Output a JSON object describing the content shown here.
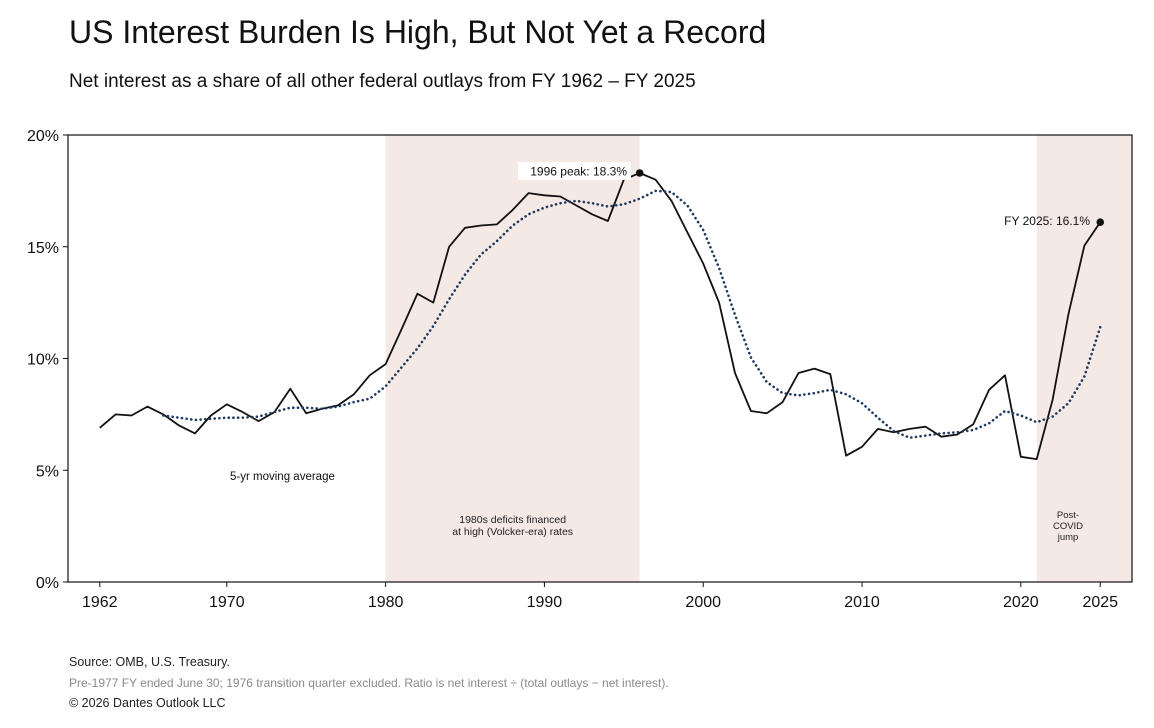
{
  "header": {
    "title": "US Interest Burden Is High, But Not Yet a Record",
    "subtitle": "Net interest as a share of all other federal outlays from FY 1962 – FY 2025"
  },
  "footer": {
    "source": "Source: OMB, U.S. Treasury.",
    "note": "Pre-1977 FY ended June 30; 1976 transition quarter excluded. Ratio is net interest ÷ (total outlays − net interest).",
    "copyright": "© 2026 Dantes Outlook LLC"
  },
  "chart_data": {
    "type": "line",
    "xlim": [
      1960,
      2027
    ],
    "ylim": [
      0,
      20
    ],
    "x_ticks": [
      1962,
      1970,
      1980,
      1990,
      2000,
      2010,
      2020,
      2025
    ],
    "y_ticks": [
      0,
      5,
      10,
      15,
      20
    ],
    "y_tick_labels": [
      "0%",
      "5%",
      "10%",
      "15%",
      "20%"
    ],
    "grid": false,
    "colors": {
      "actual": "#111111",
      "moving_average": "#1f3a5f",
      "shade": "#f5e9e6"
    },
    "shaded_regions": [
      {
        "x0": 1980,
        "x1": 1996,
        "label_lines": [
          "1980s deficits financed",
          "at high (Volcker-era) rates"
        ]
      },
      {
        "x0": 2021,
        "x1": 2027,
        "label_lines": [
          "Post-",
          "COVID",
          "jump"
        ]
      }
    ],
    "series": [
      {
        "style": "solid",
        "x": [
          1962,
          1963,
          1964,
          1965,
          1966,
          1967,
          1968,
          1969,
          1970,
          1971,
          1972,
          1973,
          1974,
          1975,
          1976,
          1977,
          1978,
          1979,
          1980,
          1981,
          1982,
          1983,
          1984,
          1985,
          1986,
          1987,
          1988,
          1989,
          1990,
          1991,
          1992,
          1993,
          1994,
          1995,
          1996,
          1997,
          1998,
          1999,
          2000,
          2001,
          2002,
          2003,
          2004,
          2005,
          2006,
          2007,
          2008,
          2009,
          2010,
          2011,
          2012,
          2013,
          2014,
          2015,
          2016,
          2017,
          2018,
          2019,
          2020,
          2021,
          2022,
          2023,
          2024,
          2025
        ],
        "values": [
          6.9,
          7.5,
          7.45,
          7.85,
          7.5,
          7.0,
          6.65,
          7.45,
          7.95,
          7.6,
          7.2,
          7.6,
          8.65,
          7.55,
          7.75,
          7.9,
          8.4,
          9.25,
          9.75,
          11.3,
          12.9,
          12.5,
          15.0,
          15.85,
          15.95,
          16.0,
          16.65,
          17.4,
          17.3,
          17.25,
          16.85,
          16.45,
          16.15,
          18.0,
          18.3,
          18.0,
          17.05,
          15.65,
          14.25,
          12.5,
          9.35,
          7.65,
          7.55,
          8.05,
          9.35,
          9.55,
          9.3,
          5.65,
          6.05,
          6.85,
          6.7,
          6.85,
          6.95,
          6.5,
          6.6,
          7.05,
          8.6,
          9.25,
          5.6,
          5.5,
          8.15,
          12.0,
          15.05,
          16.1
        ]
      },
      {
        "name": "5-yr moving average",
        "style": "dotted",
        "x": [
          1966,
          1967,
          1968,
          1969,
          1970,
          1971,
          1972,
          1973,
          1974,
          1975,
          1976,
          1977,
          1978,
          1979,
          1980,
          1981,
          1982,
          1983,
          1984,
          1985,
          1986,
          1987,
          1988,
          1989,
          1990,
          1991,
          1992,
          1993,
          1994,
          1995,
          1996,
          1997,
          1998,
          1999,
          2000,
          2001,
          2002,
          2003,
          2004,
          2005,
          2006,
          2007,
          2008,
          2009,
          2010,
          2011,
          2012,
          2013,
          2014,
          2015,
          2016,
          2017,
          2018,
          2019,
          2020,
          2021,
          2022,
          2023,
          2024,
          2025
        ],
        "values": [
          7.45,
          7.35,
          7.25,
          7.3,
          7.35,
          7.35,
          7.4,
          7.6,
          7.8,
          7.8,
          7.75,
          7.85,
          8.05,
          8.2,
          8.75,
          9.6,
          10.45,
          11.45,
          12.65,
          13.75,
          14.65,
          15.25,
          15.95,
          16.45,
          16.75,
          16.95,
          17.05,
          16.95,
          16.8,
          16.9,
          17.15,
          17.5,
          17.45,
          16.85,
          15.75,
          14.05,
          11.95,
          10.05,
          8.95,
          8.45,
          8.35,
          8.45,
          8.6,
          8.4,
          8.0,
          7.35,
          6.75,
          6.45,
          6.55,
          6.65,
          6.7,
          6.8,
          7.1,
          7.65,
          7.45,
          7.15,
          7.4,
          8.0,
          9.2,
          11.4
        ]
      }
    ],
    "annotations": [
      {
        "x": 1996,
        "y": 18.3,
        "text": "1996 peak: 18.3%"
      },
      {
        "x": 2025,
        "y": 16.1,
        "text": "FY 2025: 16.1%"
      },
      {
        "x": 1973,
        "y": 4.7,
        "text": "5-yr moving average"
      }
    ]
  }
}
